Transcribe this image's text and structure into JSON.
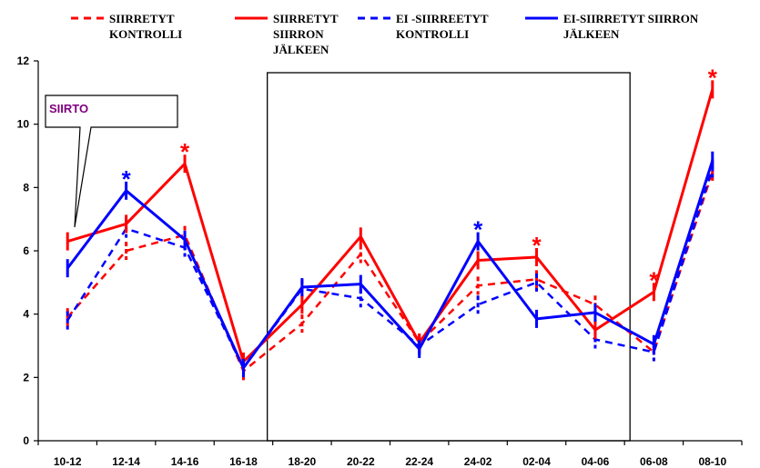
{
  "chart_data": {
    "type": "line",
    "categories": [
      "10-12",
      "12-14",
      "14-16",
      "16-18",
      "18-20",
      "20-22",
      "22-24",
      "24-02",
      "02-04",
      "04-06",
      "06-08",
      "08-10"
    ],
    "ylim": [
      0,
      12
    ],
    "yticks": [
      0,
      2,
      4,
      6,
      8,
      10,
      12
    ],
    "series": [
      {
        "name": "SIIRRETYT KONTROLLI",
        "name_lines": [
          "SIIRRETYT",
          "KONTROLLI"
        ],
        "color": "#ff0000",
        "dashed": true,
        "values": [
          3.9,
          6.0,
          6.5,
          2.2,
          3.7,
          5.9,
          3.1,
          4.9,
          5.1,
          4.3,
          2.8,
          8.5
        ]
      },
      {
        "name": "SIIRRETYT SIIRRON JÄLKEEN",
        "name_lines": [
          "SIIRRETYT",
          "SIIRRON",
          "JÄLKEEN"
        ],
        "color": "#ff0000",
        "dashed": false,
        "values": [
          6.3,
          6.85,
          8.75,
          2.5,
          4.3,
          6.45,
          3.1,
          5.7,
          5.8,
          3.5,
          4.7,
          11.1
        ]
      },
      {
        "name": "EI -SIIRREETYT KONTROLLI",
        "name_lines": [
          "EI -SIIRREETYT",
          "KONTROLLI"
        ],
        "color": "#0000ff",
        "dashed": true,
        "values": [
          3.8,
          6.7,
          6.1,
          2.3,
          4.8,
          4.5,
          3.0,
          4.3,
          5.0,
          3.2,
          2.8,
          8.6
        ]
      },
      {
        "name": "EI-SIIRRETYT SIIRRON JÄLKEEN",
        "name_lines": [
          "EI-SIIRRETYT SIIRRON",
          "JÄLKEEN"
        ],
        "color": "#0000ff",
        "dashed": false,
        "values": [
          5.45,
          7.9,
          6.35,
          2.3,
          4.85,
          4.95,
          2.9,
          6.3,
          3.85,
          4.05,
          3.05,
          8.85
        ]
      }
    ],
    "significance_markers": [
      {
        "label": "*",
        "category": "12-14",
        "series_color": "#0000ff"
      },
      {
        "label": "*",
        "category": "14-16",
        "series_color": "#ff0000"
      },
      {
        "label": "*",
        "category": "24-02",
        "series_color": "#0000ff"
      },
      {
        "label": "*",
        "category": "02-04",
        "series_color": "#ff0000"
      },
      {
        "label": "*",
        "category": "06-08",
        "series_color": "#ff0000"
      },
      {
        "label": "*",
        "category": "08-10",
        "series_color": "#ff0000"
      }
    ],
    "callout": {
      "label": "SIIRTO",
      "color": "#800080"
    },
    "highlight_range": [
      "18-20",
      "04-06"
    ],
    "legend_position": "top",
    "grid": false
  }
}
